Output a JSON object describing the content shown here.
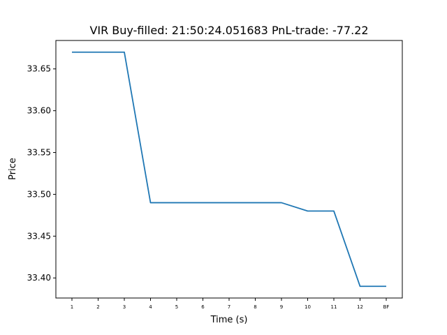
{
  "chart_data": {
    "type": "line",
    "title": "VIR  Buy-filled:  21:50:24.051683  PnL-trade:  -77.22",
    "xlabel": "Time (s)",
    "ylabel": "Price",
    "categories": [
      "1",
      "2",
      "3",
      "4",
      "5",
      "6",
      "7",
      "8",
      "9",
      "10",
      "11",
      "12",
      "BF"
    ],
    "series": [
      {
        "values": [
          33.67,
          33.67,
          33.67,
          33.49,
          33.49,
          33.49,
          33.49,
          33.49,
          33.49,
          33.48,
          33.48,
          33.39,
          33.39
        ]
      }
    ],
    "yticks": [
      "33.40",
      "33.45",
      "33.50",
      "33.55",
      "33.60",
      "33.65"
    ],
    "ylim": [
      33.376,
      33.684
    ],
    "grid": false,
    "line_color": "#1f77b4"
  }
}
